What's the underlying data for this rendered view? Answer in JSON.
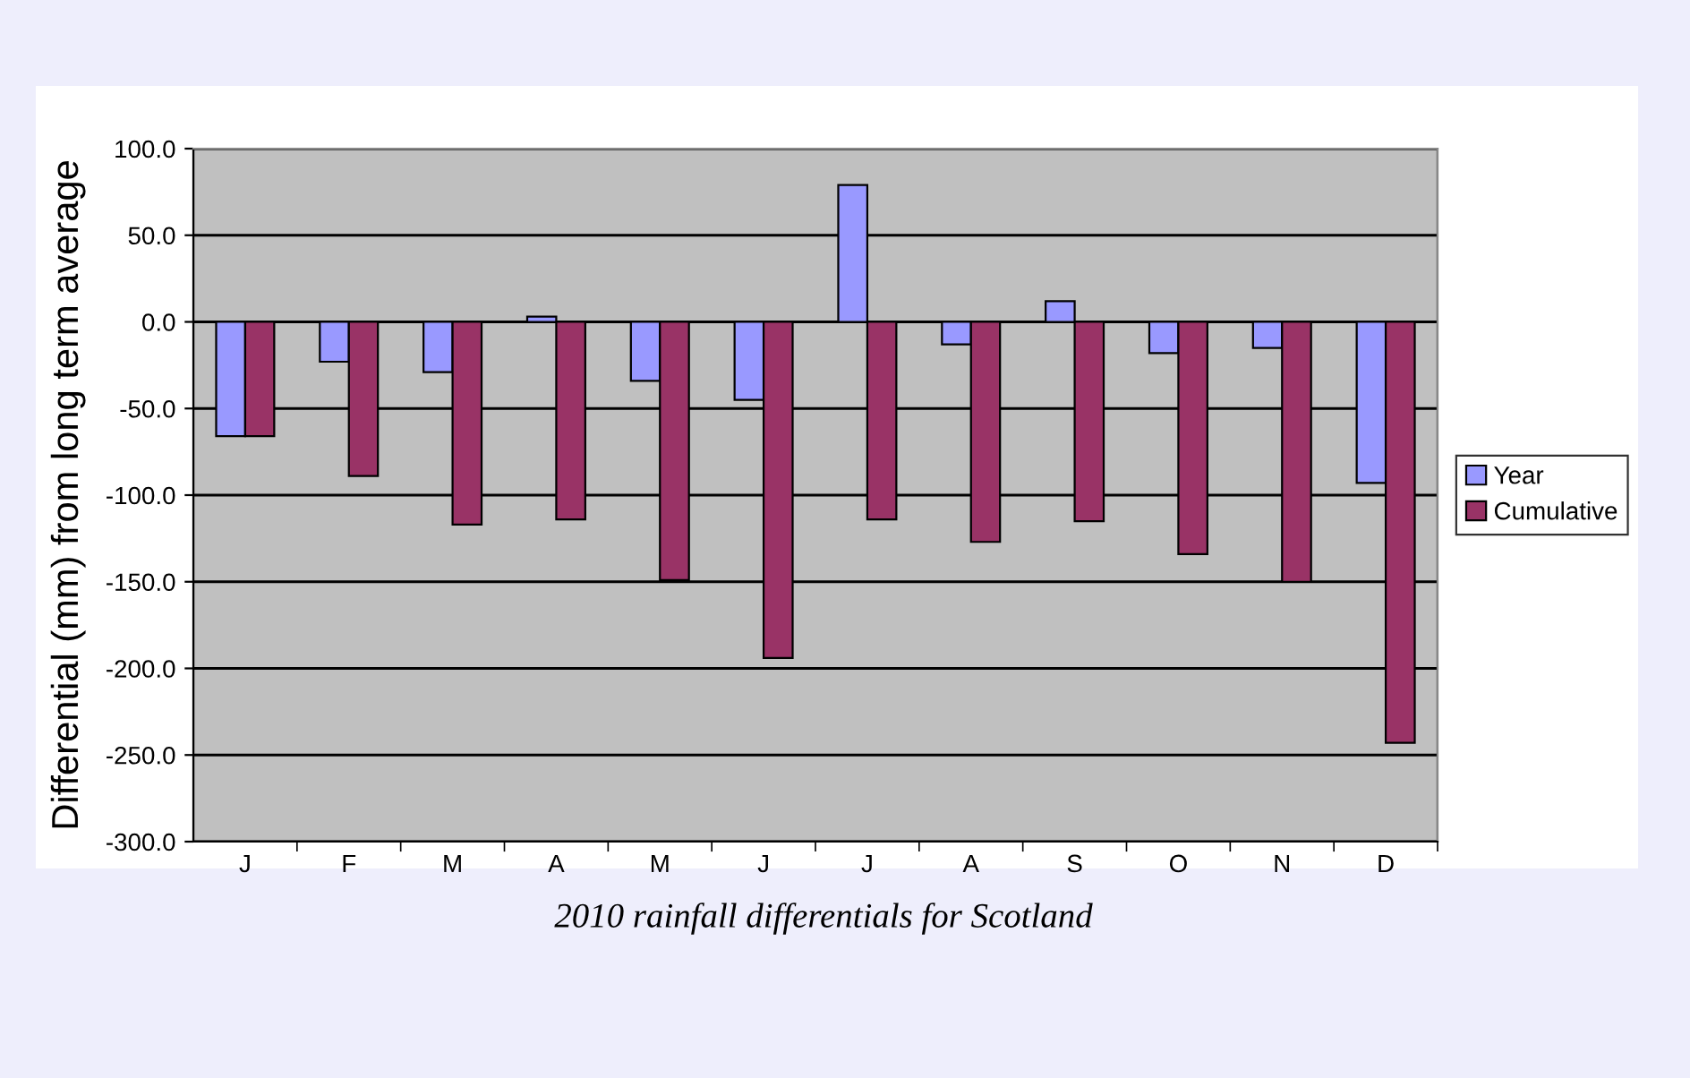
{
  "chart_data": {
    "type": "bar",
    "ylabel": "Differential (mm) from long term average",
    "categories": [
      "J",
      "F",
      "M",
      "A",
      "M",
      "J",
      "J",
      "A",
      "S",
      "O",
      "N",
      "D"
    ],
    "series": [
      {
        "name": "Year",
        "color": "#9999ff",
        "values": [
          -66,
          -23,
          -29,
          3,
          -34,
          -45,
          79,
          -13,
          12,
          -18,
          -15,
          -93
        ]
      },
      {
        "name": "Cumulative",
        "color": "#993366",
        "values": [
          -66,
          -89,
          -117,
          -114,
          -149,
          -194,
          -114,
          -127,
          -115,
          -134,
          -150,
          -243
        ]
      }
    ],
    "ylim": [
      -300,
      100
    ],
    "yticks": [
      {
        "value": -300,
        "label": "-300.0"
      },
      {
        "value": -250,
        "label": "-250.0"
      },
      {
        "value": -200,
        "label": "-200.0"
      },
      {
        "value": -150,
        "label": "-150.0"
      },
      {
        "value": -100,
        "label": "-100.0"
      },
      {
        "value": -50,
        "label": "-50.0"
      },
      {
        "value": 0,
        "label": "0.0"
      },
      {
        "value": 50,
        "label": "50.0"
      },
      {
        "value": 100,
        "label": "100.0"
      }
    ],
    "grid": "y",
    "legend": "right",
    "annotations": [
      "2010 rainfall differentials for Scotland"
    ]
  }
}
